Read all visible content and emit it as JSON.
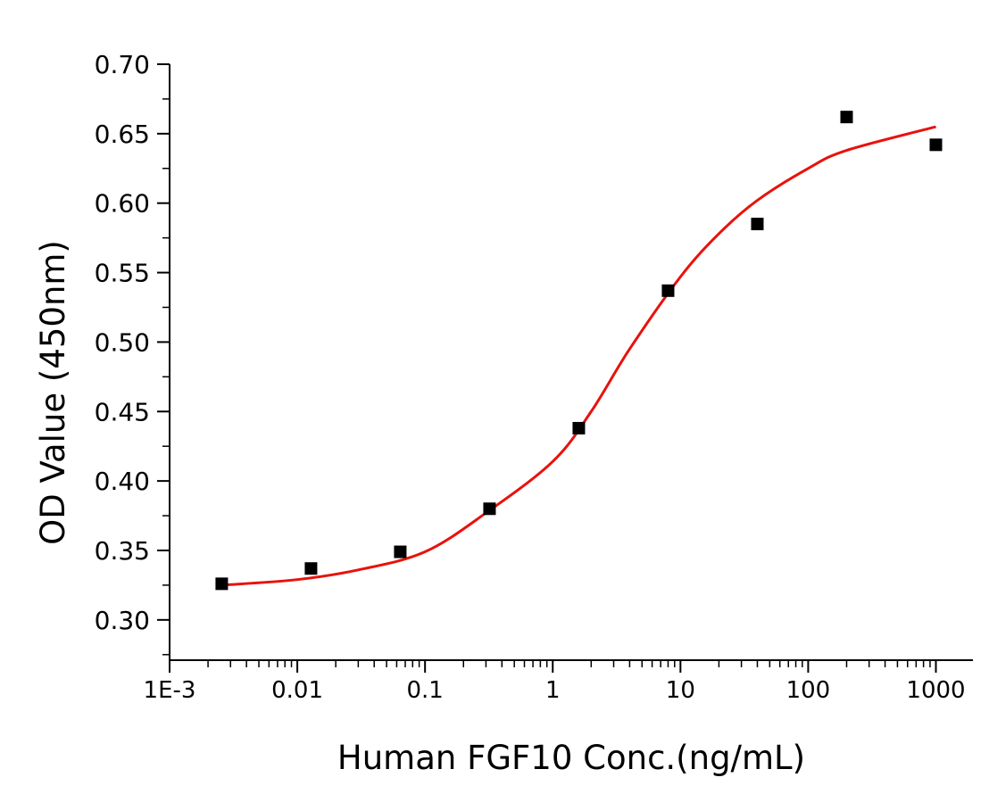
{
  "chart_data": {
    "type": "scatter",
    "title": "",
    "xlabel": "Human FGF10 Conc.(ng/mL)",
    "ylabel": "OD Value (450nm)",
    "x_scale": "log",
    "xlim": [
      0.001,
      1950
    ],
    "ylim": [
      0.271,
      0.7
    ],
    "x_ticks": [
      0.001,
      0.01,
      0.1,
      1,
      10,
      100,
      1000
    ],
    "x_tick_labels": [
      "1E-3",
      "0.01",
      "0.1",
      "1",
      "10",
      "100",
      "1000"
    ],
    "y_ticks": [
      0.3,
      0.35,
      0.4,
      0.45,
      0.5,
      0.55,
      0.6,
      0.65,
      0.7
    ],
    "y_tick_labels": [
      "0.30",
      "0.35",
      "0.40",
      "0.45",
      "0.50",
      "0.55",
      "0.60",
      "0.65",
      "0.70"
    ],
    "grid": false,
    "legend": "none",
    "series": [
      {
        "marker": "square",
        "color": "#000000",
        "x": [
          0.00256,
          0.0128,
          0.064,
          0.32,
          1.6,
          8,
          40,
          200,
          1000
        ],
        "y": [
          0.326,
          0.337,
          0.349,
          0.38,
          0.438,
          0.537,
          0.585,
          0.662,
          0.642
        ]
      },
      {
        "kind": "fit-line",
        "color": "#e8120c",
        "x": [
          0.00256,
          0.01,
          0.03,
          0.1,
          0.3,
          1,
          2,
          4,
          10,
          20,
          40,
          100,
          200,
          1000
        ],
        "y": [
          0.325,
          0.329,
          0.336,
          0.349,
          0.377,
          0.414,
          0.45,
          0.495,
          0.547,
          0.578,
          0.602,
          0.625,
          0.638,
          0.655
        ]
      }
    ]
  }
}
